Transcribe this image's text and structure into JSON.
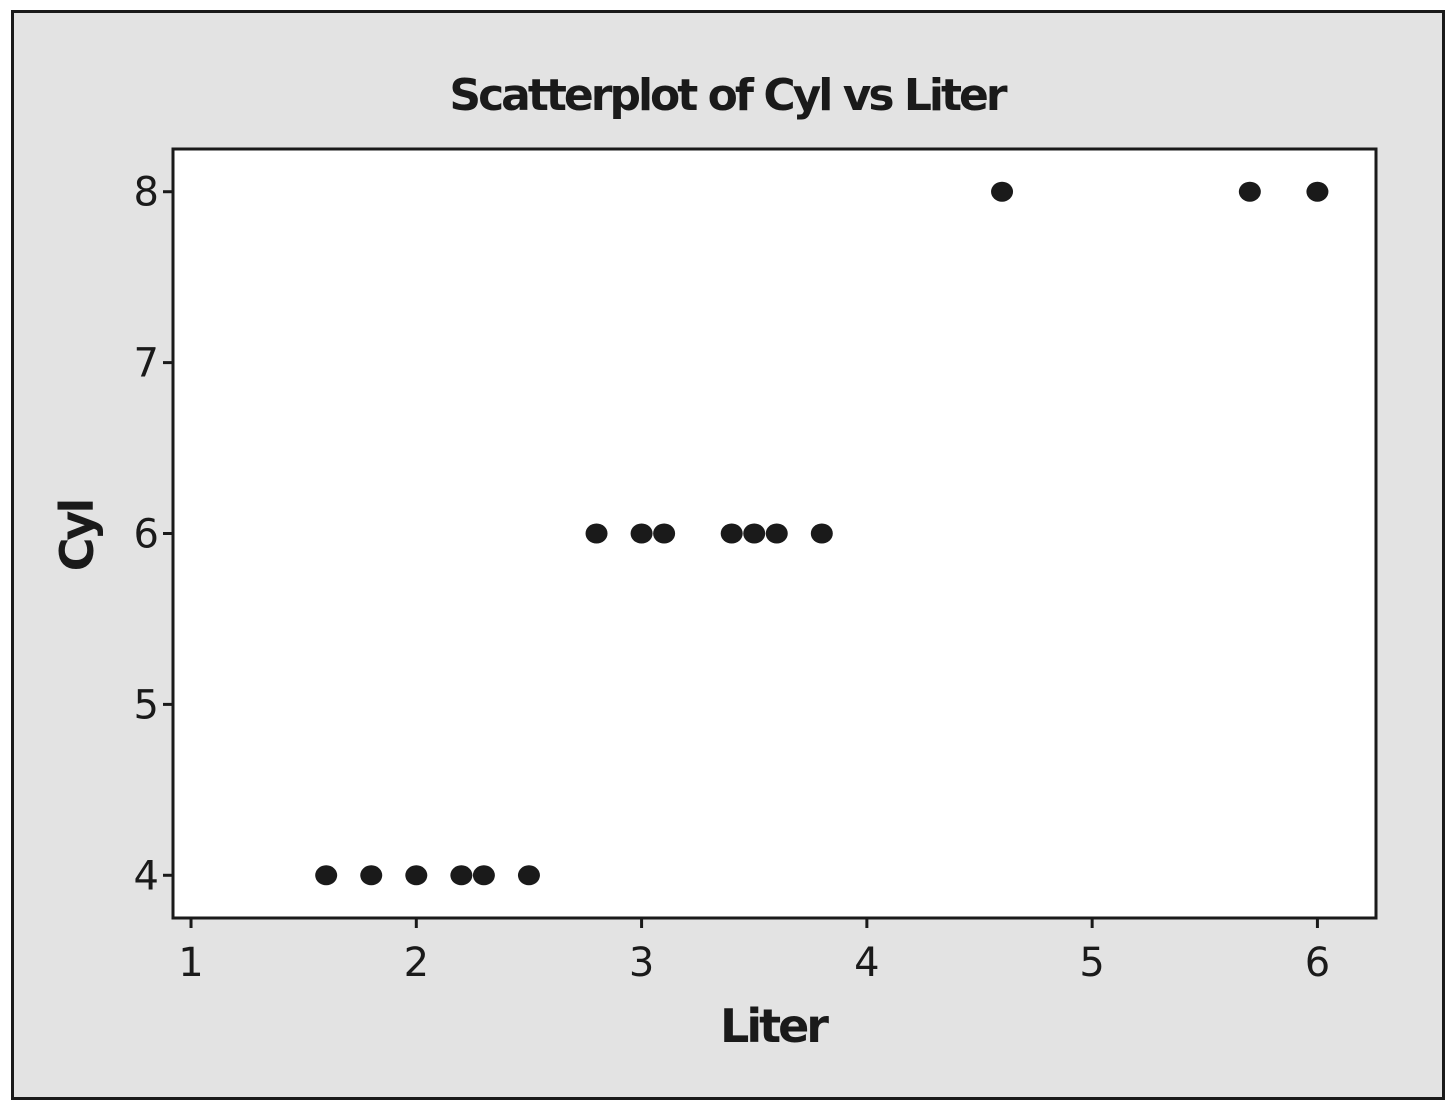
{
  "chart_data": {
    "type": "scatter",
    "title": "Scatterplot of Cyl vs Liter",
    "xlabel": "Liter",
    "ylabel": "Cyl",
    "xlim": [
      0.92,
      6.26
    ],
    "ylim": [
      3.75,
      8.25
    ],
    "xticks": [
      1,
      2,
      3,
      4,
      5,
      6
    ],
    "yticks": [
      4,
      5,
      6,
      7,
      8
    ],
    "grid": false,
    "legend": "none",
    "series": [
      {
        "x": [
          1.6,
          1.8,
          2.0,
          2.2,
          2.3,
          2.5,
          2.8,
          3.0,
          3.1,
          3.4,
          3.5,
          3.6,
          3.8,
          4.6,
          5.7,
          6.0
        ],
        "y": [
          4,
          4,
          4,
          4,
          4,
          4,
          6,
          6,
          6,
          6,
          6,
          6,
          6,
          8,
          8,
          8
        ]
      }
    ],
    "colors": {
      "background": "#e3e3e3",
      "plot_area": "#ffffff",
      "marker": "#1a1a1a",
      "axis": "#1a1a1a"
    }
  }
}
